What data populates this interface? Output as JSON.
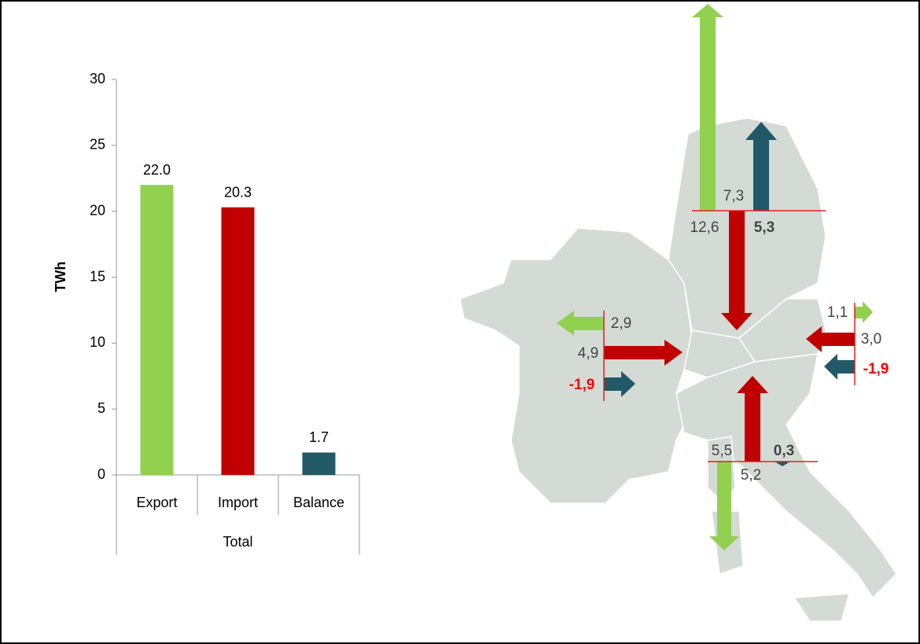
{
  "chart_data": {
    "type": "bar",
    "y_label": "TWh",
    "group_label": "Total",
    "categories": [
      "Export",
      "Import",
      "Balance"
    ],
    "values": [
      22.0,
      20.3,
      1.7
    ],
    "value_labels": [
      "22.0",
      "20.3",
      "1.7"
    ],
    "colors": [
      "#92d050",
      "#c00000",
      "#215968"
    ],
    "ylim": [
      0,
      30
    ],
    "yticks": [
      0,
      5,
      10,
      15,
      20,
      25,
      30
    ],
    "grid": false
  },
  "map": {
    "north": [
      "12,6",
      "7,3",
      "5,3"
    ],
    "west": [
      "2,9",
      "4,9",
      "-1,9"
    ],
    "east": [
      "1,1",
      "3,0",
      "-1,9"
    ],
    "south": [
      "5,5",
      "0,3",
      "5,2"
    ]
  }
}
